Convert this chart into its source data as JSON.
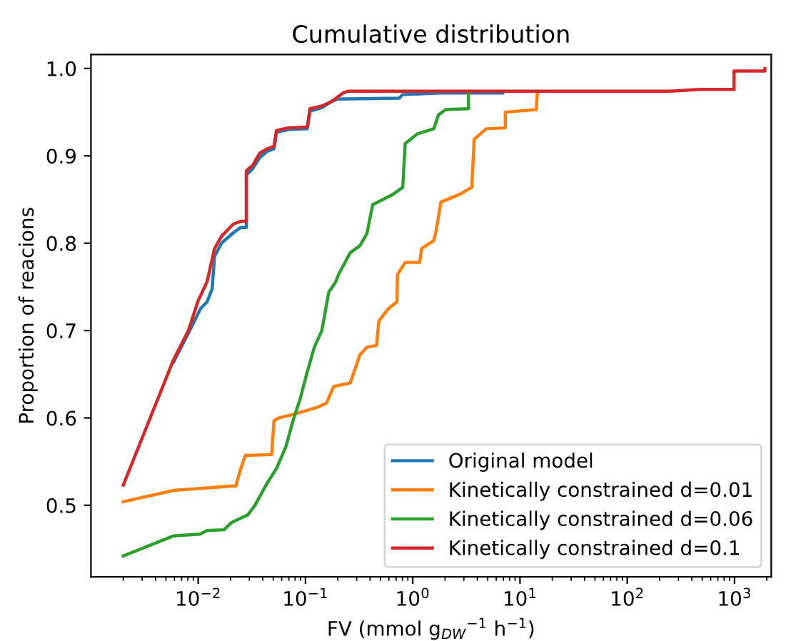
{
  "chart_data": {
    "type": "line",
    "title": "Cumulative distribution",
    "xlabel": "FV (mmol g$_{DW}$$^{−1}$ h$^{−1}$)",
    "ylabel": "Proportion of reacions",
    "log": "x",
    "xlim": [
      0.001,
      2200
    ],
    "ylim": [
      0.418,
      1.016
    ],
    "xticks": [
      {
        "value": 0.01,
        "label": "10$^{−2}$"
      },
      {
        "value": 0.1,
        "label": "10$^{−1}$"
      },
      {
        "value": 1,
        "label": "10$^{0}$"
      },
      {
        "value": 10,
        "label": "10$^{1}$"
      },
      {
        "value": 100,
        "label": "10$^{2}$"
      },
      {
        "value": 1000,
        "label": "10$^{3}$"
      }
    ],
    "yticks": [
      {
        "value": 0.5,
        "label": "0.5"
      },
      {
        "value": 0.6,
        "label": "0.6"
      },
      {
        "value": 0.7,
        "label": "0.7"
      },
      {
        "value": 0.8,
        "label": "0.8"
      },
      {
        "value": 0.9,
        "label": "0.9"
      },
      {
        "value": 1.0,
        "label": "1.0"
      }
    ],
    "grid": false,
    "legend": "lower right",
    "marker": "none",
    "line_style": "solid",
    "series": [
      {
        "name": "Original model",
        "color": "#1f77b4",
        "x": [
          0.0059,
          0.0081,
          0.0105,
          0.0121,
          0.0135,
          0.0142,
          0.0165,
          0.0213,
          0.0249,
          0.0281,
          0.0281,
          0.0321,
          0.0374,
          0.0437,
          0.0509,
          0.0536,
          0.0692,
          0.104,
          0.11,
          0.142,
          0.174,
          0.2,
          0.75,
          0.8,
          1.8,
          6.9
        ],
        "values": [
          0.664,
          0.697,
          0.725,
          0.733,
          0.748,
          0.785,
          0.8,
          0.812,
          0.818,
          0.818,
          0.878,
          0.885,
          0.898,
          0.905,
          0.908,
          0.927,
          0.93,
          0.931,
          0.951,
          0.955,
          0.962,
          0.965,
          0.966,
          0.97,
          0.972,
          0.972
        ]
      },
      {
        "name": "Kinetically constrained d=0.01",
        "color": "#ff7f0e",
        "x": [
          0.002,
          0.0059,
          0.0203,
          0.0224,
          0.0249,
          0.0275,
          0.0483,
          0.0509,
          0.0564,
          0.0766,
          0.128,
          0.157,
          0.183,
          0.261,
          0.321,
          0.374,
          0.46,
          0.483,
          0.593,
          0.713,
          0.72,
          0.85,
          1.16,
          1.21,
          1.57,
          1.65,
          1.83,
          2.75,
          3.55,
          3.74,
          4.83,
          7.29,
          7.3,
          14.2,
          14.5
        ],
        "values": [
          0.504,
          0.517,
          0.522,
          0.522,
          0.542,
          0.557,
          0.558,
          0.597,
          0.6,
          0.604,
          0.612,
          0.617,
          0.636,
          0.64,
          0.672,
          0.681,
          0.683,
          0.711,
          0.725,
          0.733,
          0.764,
          0.778,
          0.778,
          0.794,
          0.803,
          0.814,
          0.847,
          0.856,
          0.864,
          0.919,
          0.931,
          0.932,
          0.95,
          0.953,
          0.972
        ]
      },
      {
        "name": "Kinetically constrained d=0.06",
        "color": "#2ca02c",
        "x": [
          0.002,
          0.0059,
          0.0104,
          0.0121,
          0.0174,
          0.0203,
          0.029,
          0.0338,
          0.0437,
          0.0536,
          0.0656,
          0.0766,
          0.0893,
          0.104,
          0.121,
          0.142,
          0.165,
          0.192,
          0.203,
          0.261,
          0.321,
          0.374,
          0.423,
          0.656,
          0.807,
          0.85,
          1.1,
          1.57,
          1.74,
          2.03,
          3.31,
          3.31
        ],
        "values": [
          0.442,
          0.465,
          0.467,
          0.471,
          0.472,
          0.48,
          0.489,
          0.5,
          0.525,
          0.542,
          0.567,
          0.597,
          0.622,
          0.653,
          0.681,
          0.7,
          0.744,
          0.756,
          0.764,
          0.789,
          0.797,
          0.811,
          0.844,
          0.856,
          0.864,
          0.914,
          0.925,
          0.931,
          0.947,
          0.953,
          0.954,
          0.972
        ]
      },
      {
        "name": "Kinetically constrained d=0.1",
        "color": "#d62728",
        "x": [
          0.002,
          0.0059,
          0.0081,
          0.0099,
          0.0121,
          0.0142,
          0.0165,
          0.0213,
          0.0249,
          0.0281,
          0.0281,
          0.0321,
          0.0374,
          0.0437,
          0.0509,
          0.0536,
          0.0692,
          0.104,
          0.11,
          0.142,
          0.174,
          0.224,
          0.249,
          249,
          479,
          991,
          991,
          1923,
          1923
        ],
        "values": [
          0.523,
          0.667,
          0.7,
          0.733,
          0.756,
          0.794,
          0.808,
          0.822,
          0.825,
          0.825,
          0.883,
          0.889,
          0.903,
          0.908,
          0.911,
          0.929,
          0.932,
          0.933,
          0.954,
          0.957,
          0.962,
          0.972,
          0.974,
          0.974,
          0.976,
          0.976,
          0.997,
          0.997,
          1.0
        ]
      }
    ]
  }
}
